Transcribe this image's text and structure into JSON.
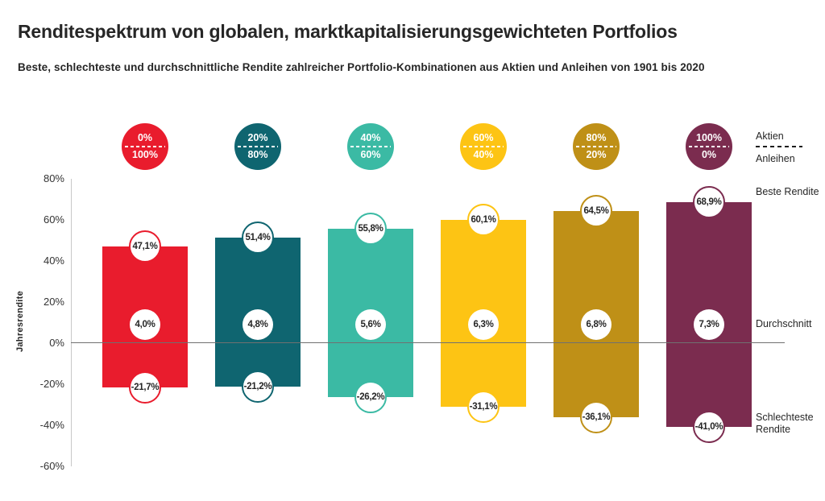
{
  "header": {
    "title": "Renditespektrum von globalen, marktkapitalisierungsgewichteten Portfolios",
    "subtitle": "Beste, schlechteste und durchschnittliche Rendite zahlreicher Portfolio-Kombinationen aus Aktien und Anleihen von 1901 bis 2020"
  },
  "chart_data": {
    "type": "bar",
    "title": "Renditespektrum von globalen, marktkapitalisierungsgewichteten Portfolios",
    "subtitle": "Beste, schlechteste und durchschnittliche Rendite zahlreicher Portfolio-Kombinationen aus Aktien und Anleihen von 1901 bis 2020",
    "ylabel": "Jahresrendite",
    "ylim": [
      -60,
      80
    ],
    "y_ticks": [
      "80%",
      "60%",
      "40%",
      "20%",
      "0%",
      "-20%",
      "-40%",
      "-60%"
    ],
    "grid": false,
    "legend": {
      "position": "top-right",
      "stocks_label": "Aktien",
      "bonds_label": "Anleihen"
    },
    "right_annotations": {
      "best": "Beste Rendite",
      "average": "Durchschnitt",
      "worst": "Schlechteste Rendite"
    },
    "categories": [
      {
        "aktien": "0%",
        "anleihen": "100%",
        "color": "#e91c2d"
      },
      {
        "aktien": "20%",
        "anleihen": "80%",
        "color": "#0f6570"
      },
      {
        "aktien": "40%",
        "anleihen": "60%",
        "color": "#3bbaa4"
      },
      {
        "aktien": "60%",
        "anleihen": "40%",
        "color": "#fdc414"
      },
      {
        "aktien": "80%",
        "anleihen": "20%",
        "color": "#bf9017"
      },
      {
        "aktien": "100%",
        "anleihen": "0%",
        "color": "#7b2c4f"
      }
    ],
    "series": [
      {
        "name": "Beste Rendite",
        "values": [
          47.1,
          51.4,
          55.8,
          60.1,
          64.5,
          68.9
        ],
        "labels": [
          "47,1%",
          "51,4%",
          "55,8%",
          "60,1%",
          "64,5%",
          "68,9%"
        ]
      },
      {
        "name": "Durchschnitt",
        "values": [
          4.0,
          4.8,
          5.6,
          6.3,
          6.8,
          7.3
        ],
        "labels": [
          "4,0%",
          "4,8%",
          "5,6%",
          "6,3%",
          "6,8%",
          "7,3%"
        ]
      },
      {
        "name": "Schlechteste Rendite",
        "values": [
          -21.7,
          -21.2,
          -26.2,
          -31.1,
          -36.1,
          -41.0
        ],
        "labels": [
          "-21,7%",
          "-21,2%",
          "-26,2%",
          "-31,1%",
          "-36,1%",
          "-41,0%"
        ]
      }
    ]
  }
}
